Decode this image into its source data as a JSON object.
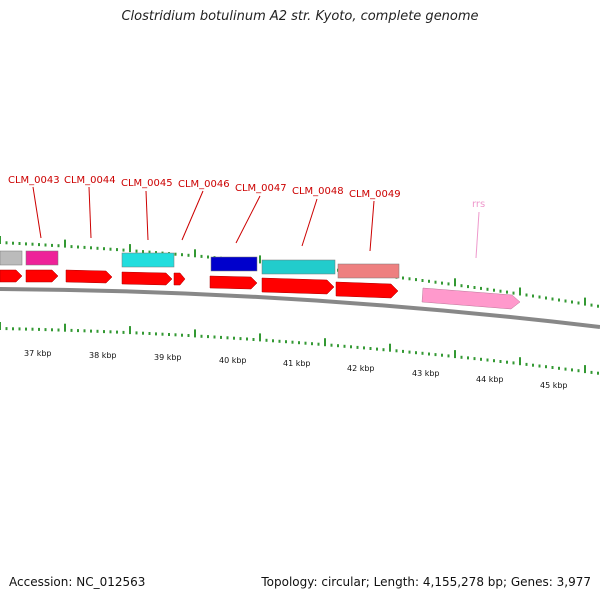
{
  "title": "Clostridium botulinum A2 str. Kyoto, complete genome",
  "footer": {
    "accession": "Accession: NC_012563",
    "summary": "Topology: circular; Length: 4,155,278 bp; Genes: 3,977"
  },
  "colors": {
    "backbone": "#888888",
    "cds_arrow": "#ff0000",
    "tick": "#339933",
    "label": "#cc0000",
    "rrs_label": "#ee99cc"
  },
  "scale_labels": [
    "37 kbp",
    "38 kbp",
    "39 kbp",
    "40 kbp",
    "41 kbp",
    "42 kbp",
    "43 kbp",
    "44 kbp",
    "45 kbp"
  ],
  "gene_labels": [
    "CLM_0043",
    "CLM_0044",
    "CLM_0045",
    "CLM_0046",
    "CLM_0047",
    "CLM_0048",
    "CLM_0049",
    "rrs"
  ],
  "category_blocks": [
    {
      "color": "#bbbbbb"
    },
    {
      "color": "#ee2299"
    },
    {
      "color": "#22dddd"
    },
    {
      "color": "#0000cc"
    },
    {
      "color": "#22cccc"
    },
    {
      "color": "#ee8080"
    }
  ],
  "rrs_feature": {
    "color": "#ff99cc"
  }
}
